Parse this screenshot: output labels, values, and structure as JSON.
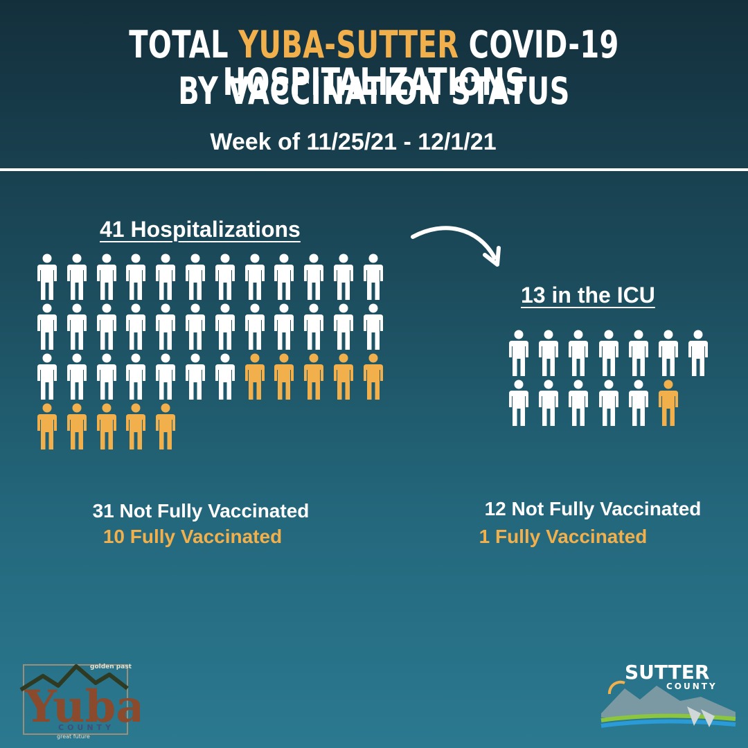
{
  "title": {
    "line1_pre": "TOTAL ",
    "line1_highlight": "YUBA-SUTTER",
    "line1_post": " COVID-19 HOSPITALIZATIONS",
    "line2": "BY VACCINATION STATUS",
    "week": "Week of 11/25/21 - 12/1/21"
  },
  "colors": {
    "accent": "#f2b04c",
    "text": "#ffffff",
    "background_top": "#142f3c",
    "background_bottom": "#2b7990"
  },
  "hospitalizations": {
    "heading": "41 Hospitalizations",
    "total": 41,
    "not_fully_vaccinated": 31,
    "fully_vaccinated": 10,
    "not_fully_label": "31 Not Fully Vaccinated",
    "fully_label": "10 Fully Vaccinated"
  },
  "icu": {
    "heading": "13 in the ICU",
    "total": 13,
    "not_fully_vaccinated": 12,
    "fully_vaccinated": 1,
    "not_fully_label": "12 Not Fully Vaccinated",
    "fully_label": "1 Fully Vaccinated"
  },
  "logos": {
    "yuba": {
      "top_text": "golden past",
      "main_text": "Yuba",
      "county_text": "COUNTY",
      "bottom_text": "great future"
    },
    "sutter": {
      "main_text": "SUTTER",
      "county_text": "COUNTY"
    }
  },
  "icons": {
    "person": "person-icon",
    "arrow": "curved-arrow-icon"
  }
}
